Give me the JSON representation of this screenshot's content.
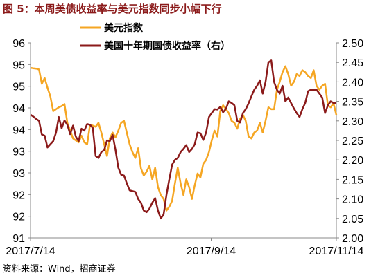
{
  "title": "图 5：本周美债收益率与美元指数同步小幅下行",
  "source": "资料来源：Wind，招商证券",
  "chart_data": {
    "type": "line",
    "title": "图 5：本周美债收益率与美元指数同步小幅下行",
    "x_tick_labels": [
      "2017/7/14",
      "2017/9/14",
      "2017/11/14"
    ],
    "y_left_ticks": [
      "96",
      "95",
      "95",
      "94",
      "94",
      "93",
      "93",
      "92",
      "92",
      "91"
    ],
    "y_left_lim": [
      91,
      96
    ],
    "y_right_ticks": [
      "2.50",
      "2.45",
      "2.40",
      "2.35",
      "2.30",
      "2.25",
      "2.20",
      "2.15",
      "2.10",
      "2.05",
      "2.00"
    ],
    "y_right_lim": [
      2.0,
      2.5
    ],
    "legend_position": "top-left",
    "grid": false,
    "series": [
      {
        "name": "美元指数",
        "axis": "left",
        "color": "#F5A623",
        "values": [
          95.36,
          95.35,
          95.34,
          95.32,
          94.95,
          95.1,
          94.85,
          94.63,
          94.25,
          94.3,
          94.35,
          94.38,
          94.43,
          93.95,
          93.75,
          93.55,
          93.5,
          93.45,
          93.62,
          93.45,
          93.4,
          93.9,
          93.88,
          93.85,
          93.95,
          93.7,
          93.4,
          93.1,
          93.55,
          93.7,
          93.58,
          93.75,
          93.95,
          94.0,
          93.7,
          93.4,
          93.2,
          93.05,
          93.3,
          92.78,
          92.6,
          92.7,
          92.85,
          92.5,
          92.8,
          92.3,
          92.1,
          92.0,
          91.7,
          91.8,
          91.95,
          92.4,
          92.8,
          92.4,
          92.1,
          92.5,
          92.3,
          92.0,
          92.35,
          92.65,
          92.55,
          92.9,
          93.0,
          93.2,
          93.5,
          93.75,
          93.6,
          94.25,
          94.4,
          94.3,
          94.2,
          94.0,
          93.95,
          93.8,
          94.05,
          94.15,
          94.0,
          93.6,
          93.55,
          93.7,
          93.75,
          93.95,
          93.7,
          94.0,
          94.35,
          94.3,
          94.3,
          94.8,
          95.0,
          95.25,
          95.4,
          95.2,
          94.9,
          95.0,
          95.2,
          95.15,
          95.3,
          95.25,
          95.15,
          95.1,
          95.3,
          94.9,
          94.8,
          94.9,
          94.95,
          94.4,
          94.35,
          94.45,
          94.15
        ],
        "line_width": 2.5
      },
      {
        "name": "美国十年期国债收益率（右）",
        "axis": "right",
        "color": "#8B1A1A",
        "values": [
          2.316,
          2.311,
          2.305,
          2.3,
          2.265,
          2.262,
          2.232,
          2.24,
          2.248,
          2.27,
          2.31,
          2.281,
          2.301,
          2.29,
          2.266,
          2.288,
          2.26,
          2.248,
          2.28,
          2.275,
          2.292,
          2.29,
          2.282,
          2.21,
          2.205,
          2.22,
          2.225,
          2.25,
          2.248,
          2.264,
          2.226,
          2.18,
          2.162,
          2.16,
          2.14,
          2.122,
          2.12,
          2.118,
          2.1,
          2.09,
          2.07,
          2.066,
          2.075,
          2.09,
          2.102,
          2.07,
          2.05,
          2.06,
          2.11,
          2.15,
          2.188,
          2.2,
          2.205,
          2.22,
          2.228,
          2.238,
          2.22,
          2.228,
          2.24,
          2.27,
          2.268,
          2.251,
          2.27,
          2.31,
          2.32,
          2.33,
          2.329,
          2.336,
          2.322,
          2.331,
          2.35,
          2.346,
          2.34,
          2.3,
          2.296,
          2.32,
          2.33,
          2.345,
          2.363,
          2.38,
          2.39,
          2.404,
          2.37,
          2.4,
          2.45,
          2.455,
          2.4,
          2.38,
          2.37,
          2.39,
          2.35,
          2.36,
          2.346,
          2.332,
          2.32,
          2.31,
          2.33,
          2.346,
          2.376,
          2.38,
          2.38,
          2.38,
          2.37,
          2.36,
          2.32,
          2.34,
          2.35,
          2.346,
          2.346
        ]
      }
    ]
  }
}
